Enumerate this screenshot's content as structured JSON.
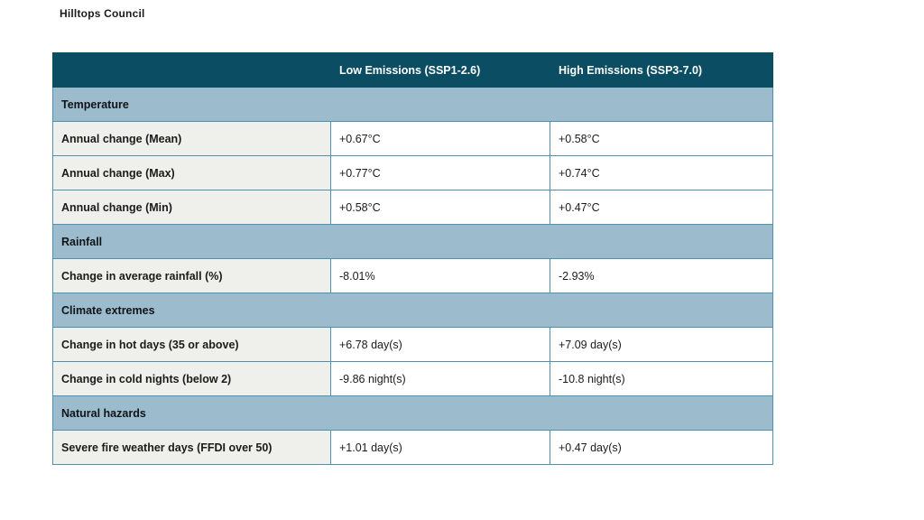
{
  "page": {
    "title": "Hilltops Council"
  },
  "colors": {
    "header_bg": "#0b4d62",
    "header_text": "#ffffff",
    "section_bg": "#9cbccd",
    "label_bg": "#efefec",
    "border": "#4e93ad",
    "text": "#1b1b1b",
    "page_bg": "#ffffff"
  },
  "table": {
    "header": {
      "col0": "",
      "col1": "Low Emissions (SSP1-2.6)",
      "col2": "High Emissions (SSP3-7.0)"
    },
    "sections": [
      {
        "title": "Temperature",
        "rows": [
          {
            "label": "Annual change (Mean)",
            "low": "+0.67°C",
            "high": "+0.58°C"
          },
          {
            "label": "Annual change (Max)",
            "low": "+0.77°C",
            "high": "+0.74°C"
          },
          {
            "label": "Annual change (Min)",
            "low": "+0.58°C",
            "high": "+0.47°C"
          }
        ]
      },
      {
        "title": "Rainfall",
        "rows": [
          {
            "label": "Change in average rainfall (%)",
            "low": "-8.01%",
            "high": "-2.93%"
          }
        ]
      },
      {
        "title": "Climate extremes",
        "rows": [
          {
            "label": "Change in hot days (35 or above)",
            "low": "+6.78 day(s)",
            "high": "+7.09 day(s)"
          },
          {
            "label": "Change in cold nights (below 2)",
            "low": "-9.86 night(s)",
            "high": "-10.8 night(s)"
          }
        ]
      },
      {
        "title": "Natural hazards",
        "rows": [
          {
            "label": "Severe fire weather days (FFDI over 50)",
            "low": "+1.01 day(s)",
            "high": "+0.47 day(s)"
          }
        ]
      }
    ]
  }
}
